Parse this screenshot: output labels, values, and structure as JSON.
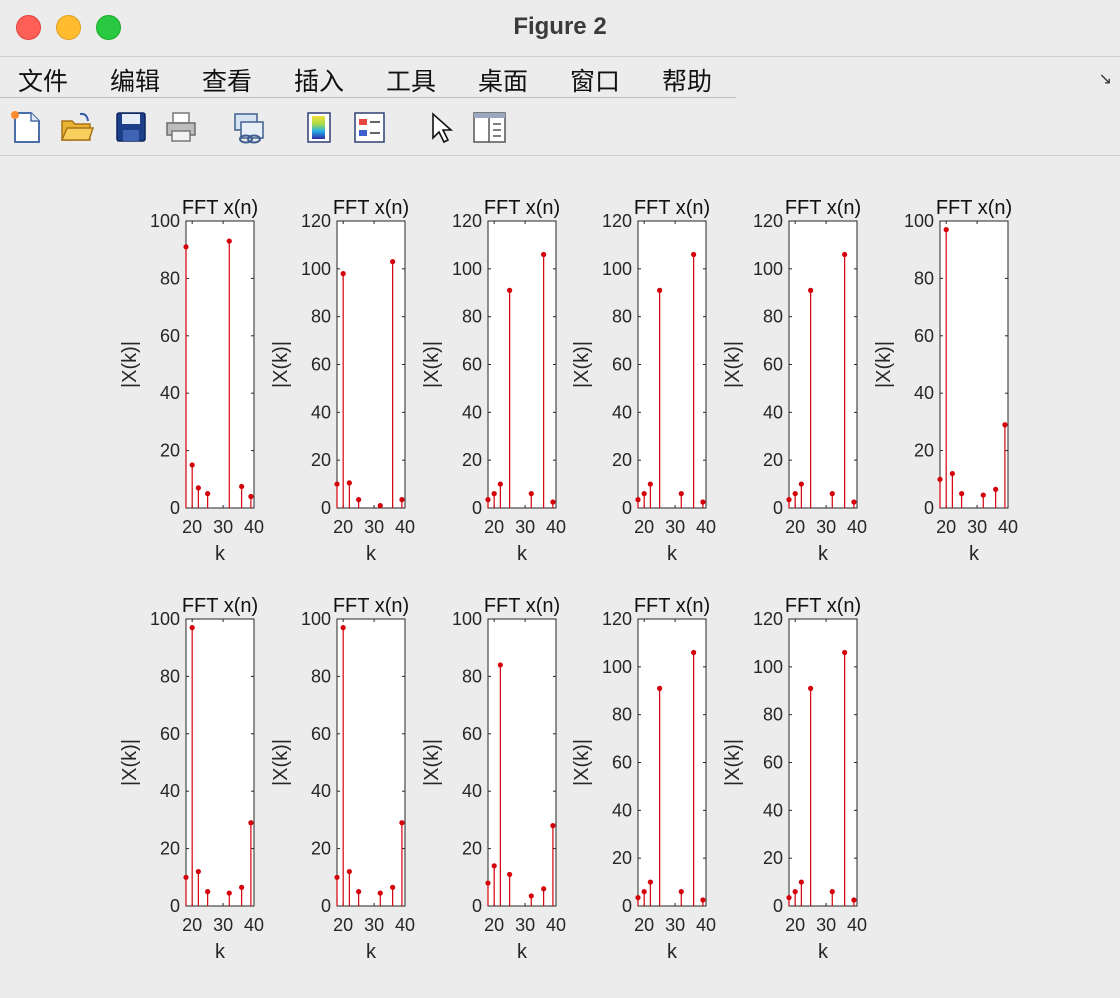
{
  "window": {
    "title": "Figure 2"
  },
  "menu": {
    "items": [
      "文件",
      "编辑",
      "查看",
      "插入",
      "工具",
      "桌面",
      "窗口",
      "帮助"
    ]
  },
  "toolbar": {
    "buttons": [
      "new-figure-icon",
      "open-file-icon",
      "save-icon",
      "print-icon",
      "link-plot-icon",
      "colorbar-icon",
      "legend-icon",
      "pointer-icon",
      "property-editor-icon"
    ]
  },
  "colors": {
    "stem": "#d4000a",
    "axes_bg": "#ffffff",
    "figure_bg": "#ececec"
  },
  "chart_data": [
    {
      "type": "stem",
      "title": "FFT x(n)",
      "xlabel": "k",
      "ylabel": "|X(k)|",
      "xlim": [
        18,
        40
      ],
      "xticks": [
        20,
        30,
        40
      ],
      "ylim": [
        0,
        100
      ],
      "yticks": [
        0,
        20,
        40,
        60,
        80,
        100
      ],
      "x": [
        18,
        20,
        22,
        25,
        32,
        36,
        39
      ],
      "y": [
        91,
        15,
        7,
        5,
        93,
        7.5,
        4
      ]
    },
    {
      "type": "stem",
      "title": "FFT x(n)",
      "xlabel": "k",
      "ylabel": "|X(k)|",
      "xlim": [
        18,
        40
      ],
      "xticks": [
        20,
        30,
        40
      ],
      "ylim": [
        0,
        120
      ],
      "yticks": [
        0,
        20,
        40,
        60,
        80,
        100,
        120
      ],
      "x": [
        18,
        20,
        22,
        25,
        32,
        36,
        39
      ],
      "y": [
        10,
        98,
        10.5,
        3.5,
        1,
        103,
        3.5
      ]
    },
    {
      "type": "stem",
      "title": "FFT x(n)",
      "xlabel": "k",
      "ylabel": "|X(k)|",
      "xlim": [
        18,
        40
      ],
      "xticks": [
        20,
        30,
        40
      ],
      "ylim": [
        0,
        120
      ],
      "yticks": [
        0,
        20,
        40,
        60,
        80,
        100,
        120
      ],
      "x": [
        18,
        20,
        22,
        25,
        32,
        36,
        39
      ],
      "y": [
        3.5,
        6,
        10,
        91,
        6,
        106,
        2.5
      ]
    },
    {
      "type": "stem",
      "title": "FFT x(n)",
      "xlabel": "k",
      "ylabel": "|X(k)|",
      "xlim": [
        18,
        40
      ],
      "xticks": [
        20,
        30,
        40
      ],
      "ylim": [
        0,
        120
      ],
      "yticks": [
        0,
        20,
        40,
        60,
        80,
        100,
        120
      ],
      "x": [
        18,
        20,
        22,
        25,
        32,
        36,
        39
      ],
      "y": [
        3.5,
        6,
        10,
        91,
        6,
        106,
        2.5
      ]
    },
    {
      "type": "stem",
      "title": "FFT x(n)",
      "xlabel": "k",
      "ylabel": "|X(k)|",
      "xlim": [
        18,
        40
      ],
      "xticks": [
        20,
        30,
        40
      ],
      "ylim": [
        0,
        120
      ],
      "yticks": [
        0,
        20,
        40,
        60,
        80,
        100,
        120
      ],
      "x": [
        18,
        20,
        22,
        25,
        32,
        36,
        39
      ],
      "y": [
        3.5,
        6,
        10,
        91,
        6,
        106,
        2.5
      ]
    },
    {
      "type": "stem",
      "title": "FFT x(n)",
      "xlabel": "k",
      "ylabel": "|X(k)|",
      "xlim": [
        18,
        40
      ],
      "xticks": [
        20,
        30,
        40
      ],
      "ylim": [
        0,
        100
      ],
      "yticks": [
        0,
        20,
        40,
        60,
        80,
        100
      ],
      "x": [
        18,
        20,
        22,
        25,
        32,
        36,
        39
      ],
      "y": [
        10,
        97,
        12,
        5,
        4.5,
        6.5,
        29
      ]
    },
    {
      "type": "stem",
      "title": "FFT x(n)",
      "xlabel": "k",
      "ylabel": "|X(k)|",
      "xlim": [
        18,
        40
      ],
      "xticks": [
        20,
        30,
        40
      ],
      "ylim": [
        0,
        100
      ],
      "yticks": [
        0,
        20,
        40,
        60,
        80,
        100
      ],
      "x": [
        18,
        20,
        22,
        25,
        32,
        36,
        39
      ],
      "y": [
        10,
        97,
        12,
        5,
        4.5,
        6.5,
        29
      ]
    },
    {
      "type": "stem",
      "title": "FFT x(n)",
      "xlabel": "k",
      "ylabel": "|X(k)|",
      "xlim": [
        18,
        40
      ],
      "xticks": [
        20,
        30,
        40
      ],
      "ylim": [
        0,
        100
      ],
      "yticks": [
        0,
        20,
        40,
        60,
        80,
        100
      ],
      "x": [
        18,
        20,
        22,
        25,
        32,
        36,
        39
      ],
      "y": [
        10,
        97,
        12,
        5,
        4.5,
        6.5,
        29
      ]
    },
    {
      "type": "stem",
      "title": "FFT x(n)",
      "xlabel": "k",
      "ylabel": "|X(k)|",
      "xlim": [
        18,
        40
      ],
      "xticks": [
        20,
        30,
        40
      ],
      "ylim": [
        0,
        100
      ],
      "yticks": [
        0,
        20,
        40,
        60,
        80,
        100
      ],
      "x": [
        18,
        20,
        22,
        25,
        32,
        36,
        39
      ],
      "y": [
        8,
        14,
        84,
        11,
        3.5,
        6,
        28
      ]
    },
    {
      "type": "stem",
      "title": "FFT x(n)",
      "xlabel": "k",
      "ylabel": "|X(k)|",
      "xlim": [
        18,
        40
      ],
      "xticks": [
        20,
        30,
        40
      ],
      "ylim": [
        0,
        120
      ],
      "yticks": [
        0,
        20,
        40,
        60,
        80,
        100,
        120
      ],
      "x": [
        18,
        20,
        22,
        25,
        32,
        36,
        39
      ],
      "y": [
        3.5,
        6,
        10,
        91,
        6,
        106,
        2.5
      ]
    },
    {
      "type": "stem",
      "title": "FFT x(n)",
      "xlabel": "k",
      "ylabel": "|X(k)|",
      "xlim": [
        18,
        40
      ],
      "xticks": [
        20,
        30,
        40
      ],
      "ylim": [
        0,
        120
      ],
      "yticks": [
        0,
        20,
        40,
        60,
        80,
        100,
        120
      ],
      "x": [
        18,
        20,
        22,
        25,
        32,
        36,
        39
      ],
      "y": [
        3.5,
        6,
        10,
        91,
        6,
        106,
        2.5
      ]
    }
  ]
}
